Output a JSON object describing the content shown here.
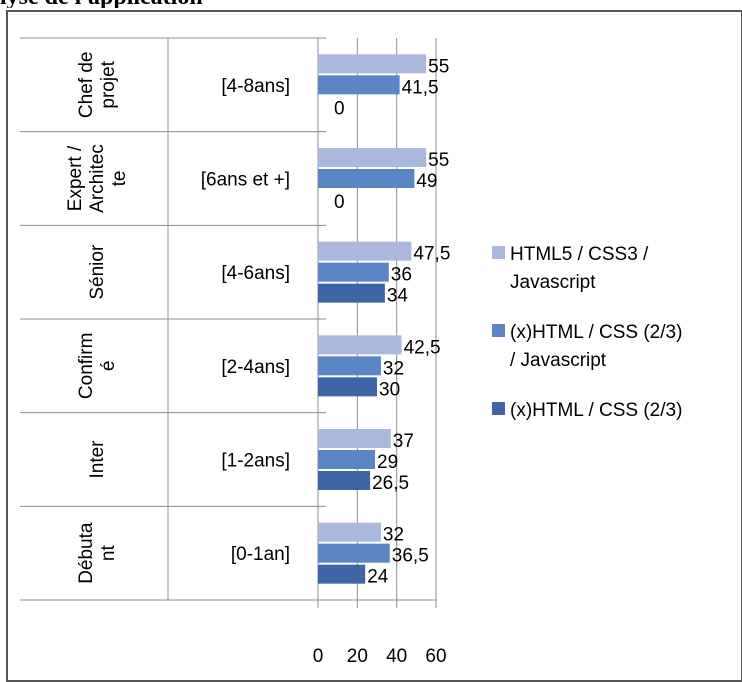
{
  "page": {
    "title": "lyse de l'application"
  },
  "chart_data": {
    "type": "bar",
    "orientation": "horizontal",
    "title": "",
    "xlabel": "",
    "ylabel": "",
    "xlim": [
      0,
      60
    ],
    "x_ticks": [
      "0",
      "20",
      "40",
      "60"
    ],
    "grid": true,
    "legend_position": "right",
    "groups": [
      {
        "outer": [
          "Chef de",
          "projet"
        ],
        "inner": "[4-8ans]"
      },
      {
        "outer": [
          "Expert /",
          "Architec",
          "te"
        ],
        "inner": "[6ans et +]"
      },
      {
        "outer": [
          "Sénior"
        ],
        "inner": "[4-6ans]"
      },
      {
        "outer": [
          "Confirm",
          "é"
        ],
        "inner": "[2-4ans]"
      },
      {
        "outer": [
          "Inter"
        ],
        "inner": "[1-2ans]"
      },
      {
        "outer": [
          "Débuta",
          "nt"
        ],
        "inner": "[0-1an]"
      }
    ],
    "series": [
      {
        "name": "HTML5 / CSS3 / Javascript",
        "legend_lines": [
          "HTML5 / CSS3 /",
          "Javascript"
        ],
        "color": "#a9b8dc",
        "values": [
          55,
          55,
          47.5,
          42.5,
          37,
          32
        ],
        "labels": [
          "55",
          "55",
          "47,5",
          "42,5",
          "37",
          "32"
        ]
      },
      {
        "name": "(x)HTML / CSS (2/3) / Javascript",
        "legend_lines": [
          "(x)HTML / CSS (2/3)",
          "/ Javascript"
        ],
        "color": "#5b86c6",
        "values": [
          41.5,
          49,
          36,
          32,
          29,
          36.5
        ],
        "labels": [
          "41,5",
          "49",
          "36",
          "32",
          "29",
          "36,5"
        ]
      },
      {
        "name": "(x)HTML / CSS (2/3)",
        "legend_lines": [
          "(x)HTML / CSS (2/3)"
        ],
        "color": "#3f66a4",
        "values": [
          0,
          0,
          34,
          30,
          26.5,
          24
        ],
        "labels": [
          "0",
          "0",
          "34",
          "30",
          "26,5",
          "24"
        ]
      }
    ]
  }
}
